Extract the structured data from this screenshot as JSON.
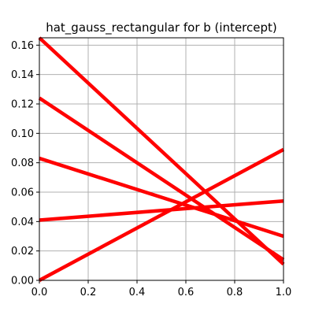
{
  "chart_data": {
    "type": "line",
    "title": "hat_gauss_rectangular for b (intercept)",
    "xlabel": "",
    "ylabel": "",
    "xlim": [
      0.0,
      1.0
    ],
    "ylim": [
      0.0,
      0.165
    ],
    "xticks": [
      0.0,
      0.2,
      0.4,
      0.6,
      0.8,
      1.0
    ],
    "xtick_labels": [
      "0.0",
      "0.2",
      "0.4",
      "0.6",
      "0.8",
      "1.0"
    ],
    "yticks": [
      0.0,
      0.02,
      0.04,
      0.06,
      0.08,
      0.1,
      0.12,
      0.14,
      0.16
    ],
    "ytick_labels": [
      "0.00",
      "0.02",
      "0.04",
      "0.06",
      "0.08",
      "0.10",
      "0.12",
      "0.14",
      "0.16"
    ],
    "grid": true,
    "legend": "none",
    "color": "#ff0000",
    "series": [
      {
        "x": [
          0.0,
          1.0
        ],
        "y": [
          0.165,
          0.011
        ]
      },
      {
        "x": [
          0.0,
          1.0
        ],
        "y": [
          0.124,
          0.014
        ]
      },
      {
        "x": [
          0.0,
          1.0
        ],
        "y": [
          0.083,
          0.03
        ]
      },
      {
        "x": [
          0.0,
          1.0
        ],
        "y": [
          0.041,
          0.054
        ]
      },
      {
        "x": [
          0.0,
          1.0
        ],
        "y": [
          0.0,
          0.089
        ]
      }
    ]
  }
}
